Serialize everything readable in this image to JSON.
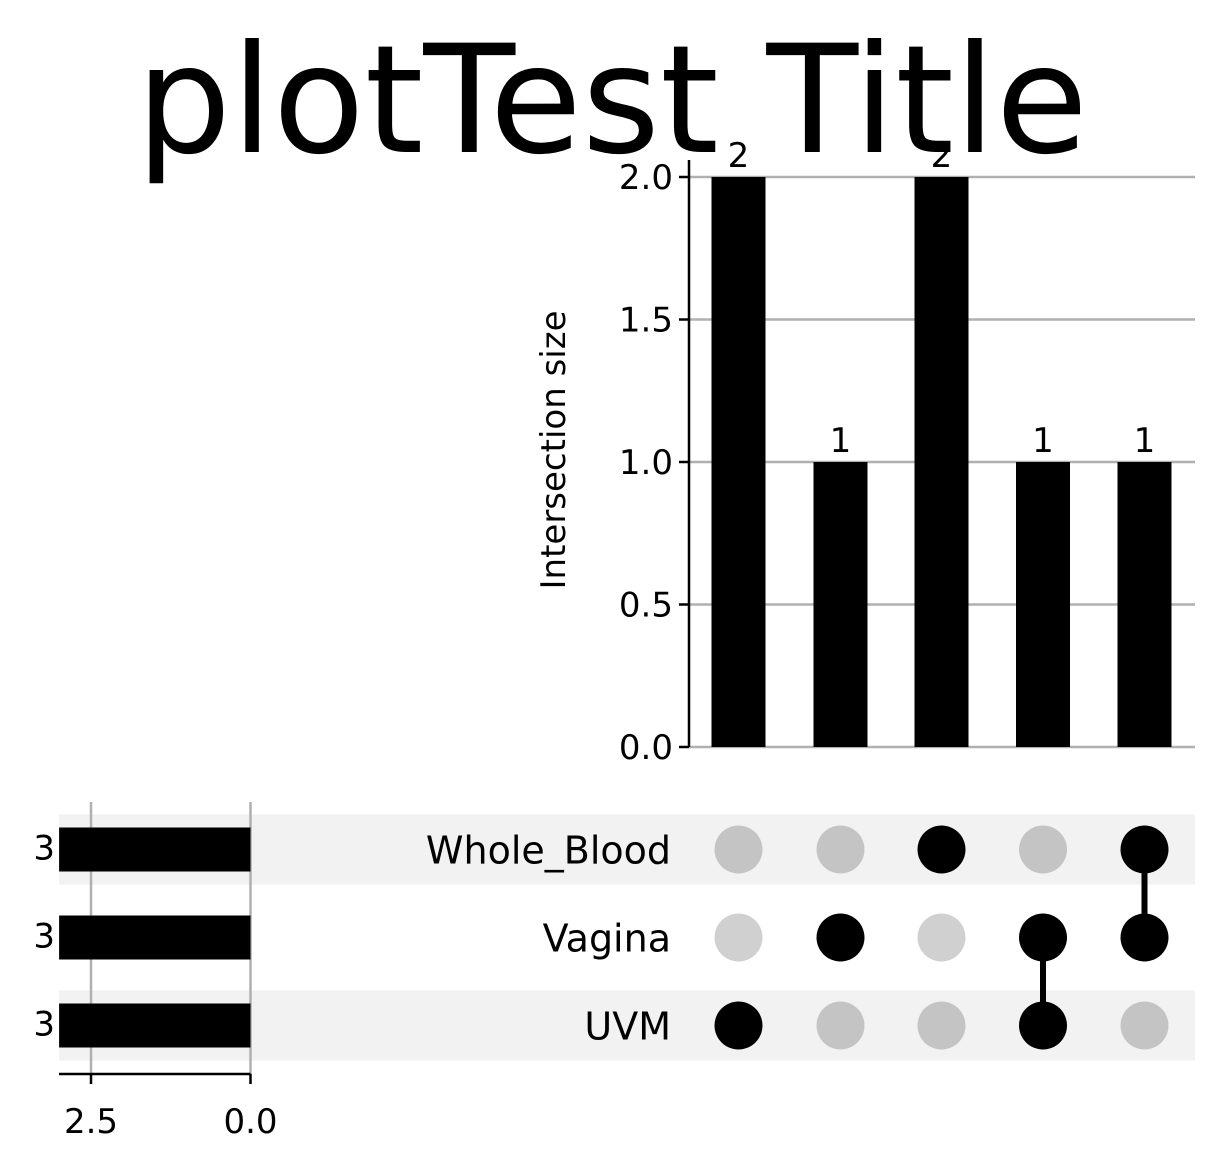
{
  "chart_data": {
    "type": "bar",
    "title": "plotTest Title",
    "ylabel": "Intersection size",
    "ylim": [
      0,
      2
    ],
    "yticks": [
      "0.0",
      "0.5",
      "1.0",
      "1.5",
      "2.0"
    ],
    "grid": true,
    "sets": [
      "Whole_Blood",
      "Vagina",
      "UVM"
    ],
    "set_sizes": [
      3,
      3,
      3
    ],
    "set_size_xticks": [
      "2.5",
      "0.0"
    ],
    "intersections": [
      {
        "members": [
          "UVM"
        ],
        "value": 2,
        "label": "2"
      },
      {
        "members": [
          "Vagina"
        ],
        "value": 1,
        "label": "1"
      },
      {
        "members": [
          "Whole_Blood"
        ],
        "value": 2,
        "label": "2"
      },
      {
        "members": [
          "Vagina",
          "UVM"
        ],
        "value": 1,
        "label": "1"
      },
      {
        "members": [
          "Whole_Blood",
          "Vagina"
        ],
        "value": 1,
        "label": "1"
      }
    ],
    "colors": {
      "bar": "#000000",
      "grid": "#b0b0b0",
      "stripe": "#f2f2f2",
      "dot_inactive": "#c4c4c4",
      "dot_inactive_light": "#d0d0d0"
    }
  }
}
